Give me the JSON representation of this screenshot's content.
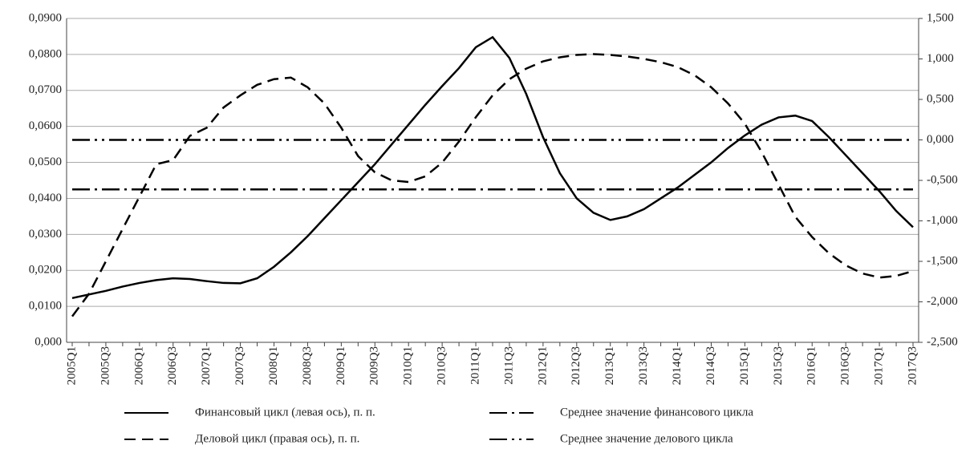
{
  "chart_data": {
    "type": "line",
    "categories": [
      "2005Q1",
      null,
      "2005Q3",
      null,
      "2006Q1",
      null,
      "2006Q3",
      null,
      "2007Q1",
      null,
      "2007Q3",
      null,
      "2008Q1",
      null,
      "2008Q3",
      null,
      "2009Q1",
      null,
      "2009Q3",
      null,
      "2010Q1",
      null,
      "2010Q3",
      null,
      "2011Q1",
      null,
      "2011Q3",
      null,
      "2012Q1",
      null,
      "2012Q3",
      null,
      "2013Q1",
      null,
      "2013Q3",
      null,
      "2014Q1",
      null,
      "2014Q3",
      null,
      "2015Q1",
      null,
      "2015Q3",
      null,
      "2016Q1",
      null,
      "2016Q3",
      null,
      "2017Q1",
      null,
      "2017Q3"
    ],
    "series": [
      {
        "name": "Финансовый цикл (левая ось), п. п.",
        "color": "#000000",
        "style": "solid",
        "values": [
          0.0123,
          0.0133,
          0.0143,
          0.0155,
          0.0165,
          0.0173,
          0.0178,
          0.0176,
          0.017,
          0.0165,
          0.0164,
          0.0178,
          0.021,
          0.025,
          0.0295,
          0.0345,
          0.0395,
          0.0445,
          0.0495,
          0.055,
          0.0605,
          0.066,
          0.0712,
          0.0762,
          0.082,
          0.0848,
          0.079,
          0.069,
          0.057,
          0.047,
          0.04,
          0.036,
          0.034,
          0.035,
          0.037,
          0.04,
          0.043,
          0.0465,
          0.05,
          0.054,
          0.0575,
          0.0605,
          0.0625,
          0.063,
          0.0615,
          0.057,
          0.052,
          0.047,
          0.042,
          0.0365,
          0.032
        ]
      },
      {
        "name": "Деловой цикл (правая ось), п. п.",
        "color": "#000000",
        "style": "dashed",
        "axis": "y2",
        "values": [
          -2.18,
          -1.9,
          -1.5,
          -1.1,
          -0.7,
          -0.3,
          -0.25,
          0.05,
          0.15,
          0.4,
          0.55,
          0.68,
          0.75,
          0.77,
          0.65,
          0.45,
          0.15,
          -0.2,
          -0.4,
          -0.5,
          -0.52,
          -0.45,
          -0.28,
          -0.02,
          0.28,
          0.55,
          0.75,
          0.88,
          0.97,
          1.02,
          1.05,
          1.06,
          1.05,
          1.03,
          1.0,
          0.96,
          0.9,
          0.8,
          0.65,
          0.45,
          0.2,
          -0.15,
          -0.55,
          -0.95,
          -1.2,
          -1.4,
          -1.55,
          -1.65,
          -1.7,
          -1.68,
          -1.62
        ]
      },
      {
        "name": "Среднее значение финансового цикла",
        "color": "#000000",
        "style": "dash-dot",
        "value": 0.0425
      },
      {
        "name": "Среднее значение делового цикла",
        "color": "#000000",
        "style": "dash-dot-dot",
        "axis": "y2",
        "value": 0.0
      }
    ],
    "ylim": [
      0,
      0.09
    ],
    "yticks": [
      {
        "value": 0,
        "label": "0,000"
      },
      {
        "value": 0.01,
        "label": "0,0100"
      },
      {
        "value": 0.02,
        "label": "0,0200"
      },
      {
        "value": 0.03,
        "label": "0,0300"
      },
      {
        "value": 0.04,
        "label": "0,0400"
      },
      {
        "value": 0.05,
        "label": "0,0500"
      },
      {
        "value": 0.06,
        "label": "0,0600"
      },
      {
        "value": 0.07,
        "label": "0,0700"
      },
      {
        "value": 0.08,
        "label": "0,0800"
      },
      {
        "value": 0.09,
        "label": "0,0900"
      }
    ],
    "y2lim": [
      -2.5,
      1.5
    ],
    "y2ticks": [
      {
        "value": -2.5,
        "label": "-2,500"
      },
      {
        "value": -2,
        "label": "-2,000"
      },
      {
        "value": -1.5,
        "label": "-1,500"
      },
      {
        "value": -1,
        "label": "-1,000"
      },
      {
        "value": -0.5,
        "label": "-0,500"
      },
      {
        "value": 0,
        "label": "0,000"
      },
      {
        "value": 0.5,
        "label": "0,500"
      },
      {
        "value": 1,
        "label": "1,000"
      },
      {
        "value": 1.5,
        "label": "1,500"
      }
    ],
    "grid": true,
    "legend": "bottom"
  }
}
